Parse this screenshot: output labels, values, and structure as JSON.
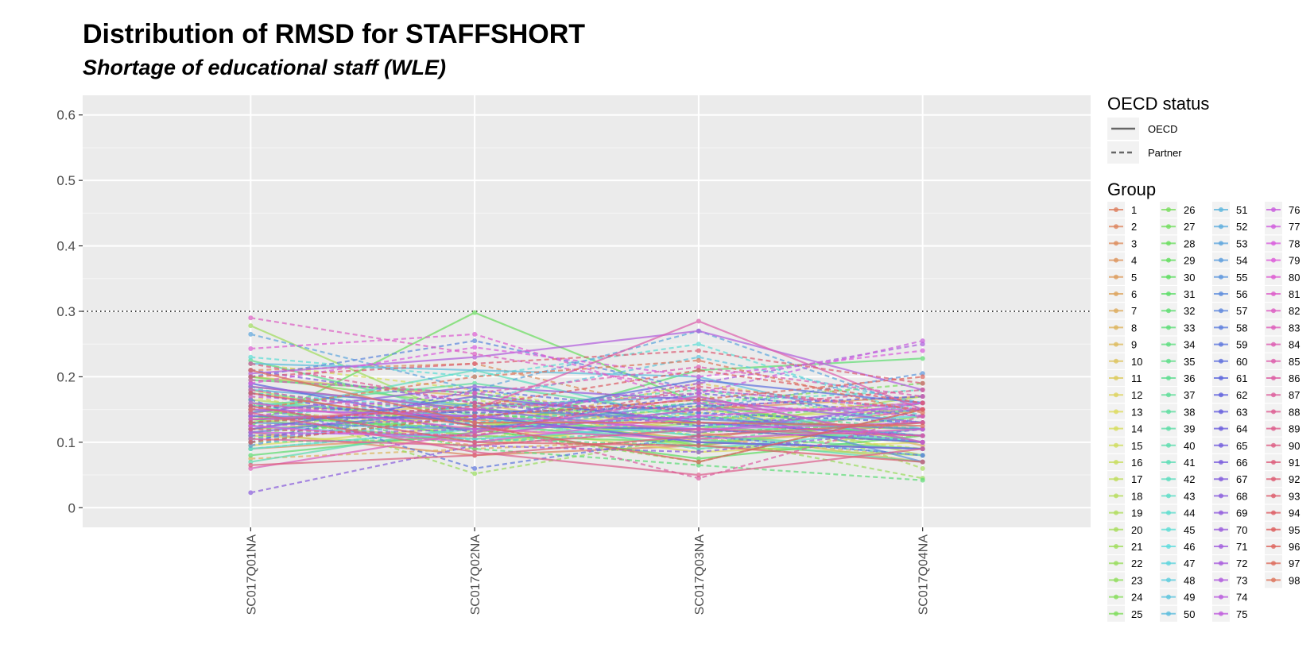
{
  "chart_data": {
    "type": "line",
    "title": "Distribution of RMSD for STAFFSHORT",
    "subtitle": "Shortage of educational staff (WLE)",
    "xlabel": "",
    "ylabel": "",
    "categories": [
      "SC017Q01NA",
      "SC017Q02NA",
      "SC017Q03NA",
      "SC017Q04NA"
    ],
    "ylim": [
      -0.03,
      0.63
    ],
    "yticks": [
      0,
      0.1,
      0.2,
      0.3,
      0.4,
      0.5,
      0.6
    ],
    "ytick_labels": [
      "0",
      "0.1",
      "0.2",
      "0.3",
      "0.4",
      "0.5",
      "0.6"
    ],
    "reference_line": 0.3,
    "grid": true,
    "legend_position": "right",
    "linetype_legend": {
      "title": "OECD status",
      "entries": [
        {
          "label": "OECD",
          "linetype": "solid"
        },
        {
          "label": "Partner",
          "linetype": "dashed"
        }
      ]
    },
    "group_legend": {
      "title": "Group",
      "entries": [
        "1",
        "2",
        "3",
        "4",
        "5",
        "6",
        "7",
        "8",
        "9",
        "10",
        "11",
        "12",
        "13",
        "14",
        "15",
        "16",
        "17",
        "18",
        "19",
        "20",
        "21",
        "22",
        "23",
        "24",
        "25",
        "26",
        "27",
        "28",
        "29",
        "30",
        "31",
        "32",
        "33",
        "34",
        "35",
        "36",
        "37",
        "38",
        "39",
        "40",
        "41",
        "42",
        "43",
        "44",
        "45",
        "46",
        "47",
        "48",
        "49",
        "50",
        "51",
        "52",
        "53",
        "54",
        "55",
        "56",
        "57",
        "58",
        "59",
        "60",
        "61",
        "62",
        "63",
        "64",
        "65",
        "66",
        "67",
        "68",
        "69",
        "70",
        "71",
        "72",
        "73",
        "74",
        "75",
        "76",
        "77",
        "78",
        "79",
        "80",
        "81",
        "82",
        "83",
        "84",
        "85",
        "86",
        "87",
        "88",
        "89",
        "90",
        "91",
        "92",
        "93",
        "94",
        "95",
        "96",
        "97",
        "98"
      ]
    },
    "series": [
      {
        "name": "1",
        "status": "OECD",
        "values": [
          0.16,
          0.135,
          0.105,
          0.15
        ]
      },
      {
        "name": "2",
        "status": "OECD",
        "values": [
          0.115,
          0.08,
          0.095,
          0.13
        ]
      },
      {
        "name": "3",
        "status": "Partner",
        "values": [
          0.21,
          0.22,
          0.14,
          0.12
        ]
      },
      {
        "name": "4",
        "status": "OECD",
        "values": [
          0.09,
          0.11,
          0.15,
          0.17
        ]
      },
      {
        "name": "5",
        "status": "Partner",
        "values": [
          0.14,
          0.095,
          0.12,
          0.1
        ]
      },
      {
        "name": "6",
        "status": "OECD",
        "values": [
          0.185,
          0.15,
          0.13,
          0.11
        ]
      },
      {
        "name": "7",
        "status": "OECD",
        "values": [
          0.12,
          0.14,
          0.165,
          0.095
        ]
      },
      {
        "name": "8",
        "status": "Partner",
        "values": [
          0.075,
          0.09,
          0.105,
          0.08
        ]
      },
      {
        "name": "9",
        "status": "OECD",
        "values": [
          0.2,
          0.17,
          0.115,
          0.07
        ]
      },
      {
        "name": "10",
        "status": "Partner",
        "values": [
          0.15,
          0.12,
          0.19,
          0.14
        ]
      },
      {
        "name": "11",
        "status": "OECD",
        "values": [
          0.13,
          0.16,
          0.1,
          0.12
        ]
      },
      {
        "name": "12",
        "status": "Partner",
        "values": [
          0.17,
          0.105,
          0.145,
          0.16
        ]
      },
      {
        "name": "13",
        "status": "OECD",
        "values": [
          0.095,
          0.125,
          0.085,
          0.1
        ]
      },
      {
        "name": "14",
        "status": "Partner",
        "values": [
          0.22,
          0.18,
          0.125,
          0.09
        ]
      },
      {
        "name": "15",
        "status": "OECD",
        "values": [
          0.11,
          0.095,
          0.135,
          0.15
        ]
      },
      {
        "name": "16",
        "status": "Partner",
        "values": [
          0.145,
          0.165,
          0.11,
          0.13
        ]
      },
      {
        "name": "17",
        "status": "OECD",
        "values": [
          0.18,
          0.115,
          0.155,
          0.08
        ]
      },
      {
        "name": "18",
        "status": "Partner",
        "values": [
          0.1,
          0.14,
          0.09,
          0.11
        ]
      },
      {
        "name": "19",
        "status": "OECD",
        "values": [
          0.165,
          0.13,
          0.12,
          0.17
        ]
      },
      {
        "name": "20",
        "status": "Partner",
        "values": [
          0.125,
          0.15,
          0.175,
          0.06
        ]
      },
      {
        "name": "21",
        "status": "OECD",
        "values": [
          0.278,
          0.13,
          0.095,
          0.08
        ]
      },
      {
        "name": "22",
        "status": "Partner",
        "values": [
          0.16,
          0.052,
          0.11,
          0.045
        ]
      },
      {
        "name": "23",
        "status": "OECD",
        "values": [
          0.135,
          0.1,
          0.13,
          0.12
        ]
      },
      {
        "name": "24",
        "status": "Partner",
        "values": [
          0.09,
          0.12,
          0.07,
          0.15
        ]
      },
      {
        "name": "25",
        "status": "OECD",
        "values": [
          0.2,
          0.155,
          0.095,
          0.14
        ]
      },
      {
        "name": "26",
        "status": "Partner",
        "values": [
          0.115,
          0.135,
          0.16,
          0.19
        ]
      },
      {
        "name": "27",
        "status": "OECD",
        "values": [
          0.15,
          0.11,
          0.1,
          0.09
        ]
      },
      {
        "name": "28",
        "status": "OECD",
        "values": [
          0.125,
          0.298,
          0.16,
          0.1
        ]
      },
      {
        "name": "29",
        "status": "Partner",
        "values": [
          0.175,
          0.145,
          0.115,
          0.13
        ]
      },
      {
        "name": "30",
        "status": "OECD",
        "values": [
          0.14,
          0.12,
          0.075,
          0.11
        ]
      },
      {
        "name": "31",
        "status": "Partner",
        "values": [
          0.105,
          0.16,
          0.135,
          0.16
        ]
      },
      {
        "name": "32",
        "status": "OECD",
        "values": [
          0.08,
          0.115,
          0.21,
          0.228
        ]
      },
      {
        "name": "33",
        "status": "Partner",
        "values": [
          0.16,
          0.09,
          0.065,
          0.042
        ]
      },
      {
        "name": "34",
        "status": "OECD",
        "values": [
          0.195,
          0.175,
          0.125,
          0.1
        ]
      },
      {
        "name": "35",
        "status": "Partner",
        "values": [
          0.12,
          0.135,
          0.15,
          0.12
        ]
      },
      {
        "name": "36",
        "status": "OECD",
        "values": [
          0.225,
          0.14,
          0.11,
          0.09
        ]
      },
      {
        "name": "37",
        "status": "Partner",
        "values": [
          0.1,
          0.105,
          0.095,
          0.16
        ]
      },
      {
        "name": "38",
        "status": "OECD",
        "values": [
          0.155,
          0.19,
          0.14,
          0.11
        ]
      },
      {
        "name": "39",
        "status": "Partner",
        "values": [
          0.13,
          0.15,
          0.18,
          0.13
        ]
      },
      {
        "name": "40",
        "status": "OECD",
        "values": [
          0.07,
          0.125,
          0.105,
          0.07
        ]
      },
      {
        "name": "41",
        "status": "Partner",
        "values": [
          0.185,
          0.1,
          0.12,
          0.15
        ]
      },
      {
        "name": "42",
        "status": "OECD",
        "values": [
          0.145,
          0.21,
          0.13,
          0.1
        ]
      },
      {
        "name": "43",
        "status": "Partner",
        "values": [
          0.11,
          0.13,
          0.16,
          0.18
        ]
      },
      {
        "name": "44",
        "status": "OECD",
        "values": [
          0.16,
          0.14,
          0.09,
          0.12
        ]
      },
      {
        "name": "45",
        "status": "Partner",
        "values": [
          0.23,
          0.2,
          0.25,
          0.14
        ]
      },
      {
        "name": "46",
        "status": "OECD",
        "values": [
          0.09,
          0.12,
          0.14,
          0.1
        ]
      },
      {
        "name": "47",
        "status": "Partner",
        "values": [
          0.175,
          0.15,
          0.11,
          0.08
        ]
      },
      {
        "name": "48",
        "status": "OECD",
        "values": [
          0.125,
          0.105,
          0.125,
          0.14
        ]
      },
      {
        "name": "49",
        "status": "Partner",
        "values": [
          0.14,
          0.165,
          0.23,
          0.16
        ]
      },
      {
        "name": "50",
        "status": "OECD",
        "values": [
          0.22,
          0.21,
          0.2,
          0.12
        ]
      },
      {
        "name": "51",
        "status": "Partner",
        "values": [
          0.105,
          0.13,
          0.145,
          0.11
        ]
      },
      {
        "name": "52",
        "status": "OECD",
        "values": [
          0.18,
          0.155,
          0.17,
          0.1
        ]
      },
      {
        "name": "53",
        "status": "Partner",
        "values": [
          0.265,
          0.18,
          0.27,
          0.15
        ]
      },
      {
        "name": "54",
        "status": "OECD",
        "values": [
          0.15,
          0.14,
          0.1,
          0.09
        ]
      },
      {
        "name": "55",
        "status": "Partner",
        "values": [
          0.095,
          0.16,
          0.15,
          0.205
        ]
      },
      {
        "name": "56",
        "status": "OECD",
        "values": [
          0.13,
          0.12,
          0.16,
          0.07
        ]
      },
      {
        "name": "57",
        "status": "Partner",
        "values": [
          0.2,
          0.255,
          0.18,
          0.15
        ]
      },
      {
        "name": "58",
        "status": "OECD",
        "values": [
          0.115,
          0.15,
          0.135,
          0.12
        ]
      },
      {
        "name": "59",
        "status": "Partner",
        "values": [
          0.165,
          0.06,
          0.11,
          0.08
        ]
      },
      {
        "name": "60",
        "status": "OECD",
        "values": [
          0.14,
          0.135,
          0.195,
          0.16
        ]
      },
      {
        "name": "61",
        "status": "Partner",
        "values": [
          0.1,
          0.18,
          0.145,
          0.13
        ]
      },
      {
        "name": "62",
        "status": "OECD",
        "values": [
          0.19,
          0.125,
          0.12,
          0.1
        ]
      },
      {
        "name": "63",
        "status": "Partner",
        "values": [
          0.155,
          0.145,
          0.155,
          0.17
        ]
      },
      {
        "name": "64",
        "status": "OECD",
        "values": [
          0.12,
          0.17,
          0.13,
          0.11
        ]
      },
      {
        "name": "65",
        "status": "Partner",
        "values": [
          0.175,
          0.115,
          0.175,
          0.14
        ]
      },
      {
        "name": "66",
        "status": "OECD",
        "values": [
          0.135,
          0.14,
          0.1,
          0.09
        ]
      },
      {
        "name": "67",
        "status": "Partner",
        "values": [
          0.21,
          0.16,
          0.125,
          0.15
        ]
      },
      {
        "name": "68",
        "status": "Partner",
        "values": [
          0.023,
          0.095,
          0.085,
          0.12
        ]
      },
      {
        "name": "69",
        "status": "OECD",
        "values": [
          0.145,
          0.185,
          0.165,
          0.13
        ]
      },
      {
        "name": "70",
        "status": "Partner",
        "values": [
          0.11,
          0.12,
          0.14,
          0.1
        ]
      },
      {
        "name": "71",
        "status": "OECD",
        "values": [
          0.185,
          0.15,
          0.115,
          0.16
        ]
      },
      {
        "name": "72",
        "status": "Partner",
        "values": [
          0.125,
          0.135,
          0.19,
          0.25
        ]
      },
      {
        "name": "73",
        "status": "OECD",
        "values": [
          0.205,
          0.23,
          0.27,
          0.18
        ]
      },
      {
        "name": "74",
        "status": "Partner",
        "values": [
          0.14,
          0.175,
          0.13,
          0.11
        ]
      },
      {
        "name": "75",
        "status": "OECD",
        "values": [
          0.115,
          0.11,
          0.15,
          0.15
        ]
      },
      {
        "name": "76",
        "status": "Partner",
        "values": [
          0.17,
          0.15,
          0.175,
          0.255
        ]
      },
      {
        "name": "77",
        "status": "OECD",
        "values": [
          0.15,
          0.14,
          0.12,
          0.13
        ]
      },
      {
        "name": "78",
        "status": "Partner",
        "values": [
          0.19,
          0.245,
          0.2,
          0.24
        ]
      },
      {
        "name": "79",
        "status": "OECD",
        "values": [
          0.125,
          0.1,
          0.14,
          0.16
        ]
      },
      {
        "name": "80",
        "status": "Partner",
        "values": [
          0.243,
          0.265,
          0.16,
          0.14
        ]
      },
      {
        "name": "81",
        "status": "OECD",
        "values": [
          0.16,
          0.12,
          0.105,
          0.12
        ]
      },
      {
        "name": "82",
        "status": "Partner",
        "values": [
          0.29,
          0.235,
          0.18,
          0.15
        ]
      },
      {
        "name": "83",
        "status": "OECD",
        "values": [
          0.06,
          0.115,
          0.17,
          0.1
        ]
      },
      {
        "name": "84",
        "status": "Partner",
        "values": [
          0.195,
          0.175,
          0.215,
          0.17
        ]
      },
      {
        "name": "85",
        "status": "OECD",
        "values": [
          0.135,
          0.15,
          0.285,
          0.15
        ]
      },
      {
        "name": "86",
        "status": "Partner",
        "values": [
          0.18,
          0.13,
          0.045,
          0.14
        ]
      },
      {
        "name": "87",
        "status": "OECD",
        "values": [
          0.105,
          0.095,
          0.12,
          0.11
        ]
      },
      {
        "name": "88",
        "status": "Partner",
        "values": [
          0.22,
          0.16,
          0.15,
          0.18
        ]
      },
      {
        "name": "89",
        "status": "OECD",
        "values": [
          0.145,
          0.085,
          0.05,
          0.09
        ]
      },
      {
        "name": "90",
        "status": "Partner",
        "values": [
          0.12,
          0.11,
          0.185,
          0.15
        ]
      },
      {
        "name": "91",
        "status": "OECD",
        "values": [
          0.065,
          0.08,
          0.11,
          0.13
        ]
      },
      {
        "name": "92",
        "status": "Partner",
        "values": [
          0.2,
          0.22,
          0.24,
          0.19
        ]
      },
      {
        "name": "93",
        "status": "OECD",
        "values": [
          0.155,
          0.1,
          0.095,
          0.07
        ]
      },
      {
        "name": "94",
        "status": "Partner",
        "values": [
          0.13,
          0.155,
          0.21,
          0.16
        ]
      },
      {
        "name": "95",
        "status": "OECD",
        "values": [
          0.175,
          0.125,
          0.07,
          0.15
        ]
      },
      {
        "name": "96",
        "status": "Partner",
        "values": [
          0.1,
          0.14,
          0.165,
          0.2
        ]
      },
      {
        "name": "97",
        "status": "OECD",
        "values": [
          0.21,
          0.13,
          0.13,
          0.125
        ]
      },
      {
        "name": "98",
        "status": "Partner",
        "values": [
          0.15,
          0.2,
          0.225,
          0.145
        ]
      }
    ]
  }
}
